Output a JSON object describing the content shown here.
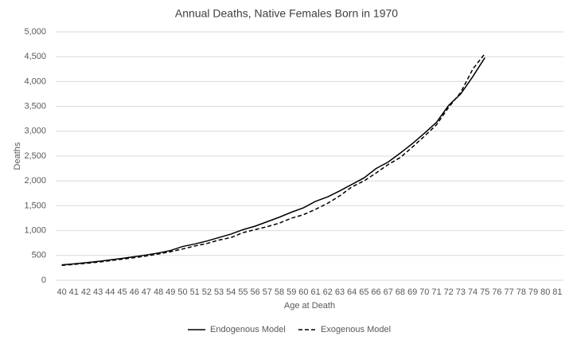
{
  "chart_data": {
    "type": "line",
    "title": "Annual Deaths, Native Females Born in 1970",
    "x_label": "Age at Death",
    "y_label": "Deaths",
    "categories": [
      40,
      41,
      42,
      43,
      44,
      45,
      46,
      47,
      48,
      49,
      50,
      51,
      52,
      53,
      54,
      55,
      56,
      57,
      58,
      59,
      60,
      61,
      62,
      63,
      64,
      65,
      66,
      67,
      68,
      69,
      70,
      71,
      72,
      73,
      74,
      75,
      76,
      77,
      78,
      79,
      80,
      81
    ],
    "series": [
      {
        "name": "Endogenous Model",
        "color": "#000000",
        "dash": "solid",
        "values": [
          310,
          330,
          355,
          380,
          410,
          440,
          475,
          510,
          550,
          600,
          680,
          730,
          790,
          860,
          930,
          1020,
          1090,
          1180,
          1270,
          1370,
          1460,
          1590,
          1680,
          1800,
          1930,
          2060,
          2250,
          2380,
          2560,
          2750,
          2960,
          3180,
          3520,
          3750,
          4100,
          4480,
          null,
          null,
          null,
          null,
          null,
          null
        ]
      },
      {
        "name": "Exogenous Model",
        "color": "#000000",
        "dash": "dashed",
        "values": [
          300,
          320,
          340,
          365,
          395,
          425,
          455,
          490,
          530,
          575,
          630,
          690,
          740,
          810,
          860,
          960,
          1020,
          1080,
          1150,
          1250,
          1320,
          1430,
          1550,
          1700,
          1880,
          2000,
          2160,
          2330,
          2470,
          2680,
          2900,
          3130,
          3480,
          3780,
          4250,
          4560,
          null,
          null,
          null,
          null,
          null,
          null
        ]
      }
    ],
    "ylim": [
      0,
      5000
    ],
    "yticks": [
      0,
      500,
      {
        "value": 1000,
        "label": "1,000"
      },
      {
        "value": 1500,
        "label": "1,500"
      },
      {
        "value": 2000,
        "label": "2,000"
      },
      {
        "value": 2500,
        "label": "2,500"
      },
      {
        "value": 3000,
        "label": "3,000"
      },
      {
        "value": 3500,
        "label": "3,500"
      },
      {
        "value": 4000,
        "label": "4,000"
      },
      {
        "value": 4500,
        "label": "4,500"
      },
      {
        "value": 5000,
        "label": "5,000"
      }
    ],
    "grid": true,
    "legend": "bottom"
  }
}
